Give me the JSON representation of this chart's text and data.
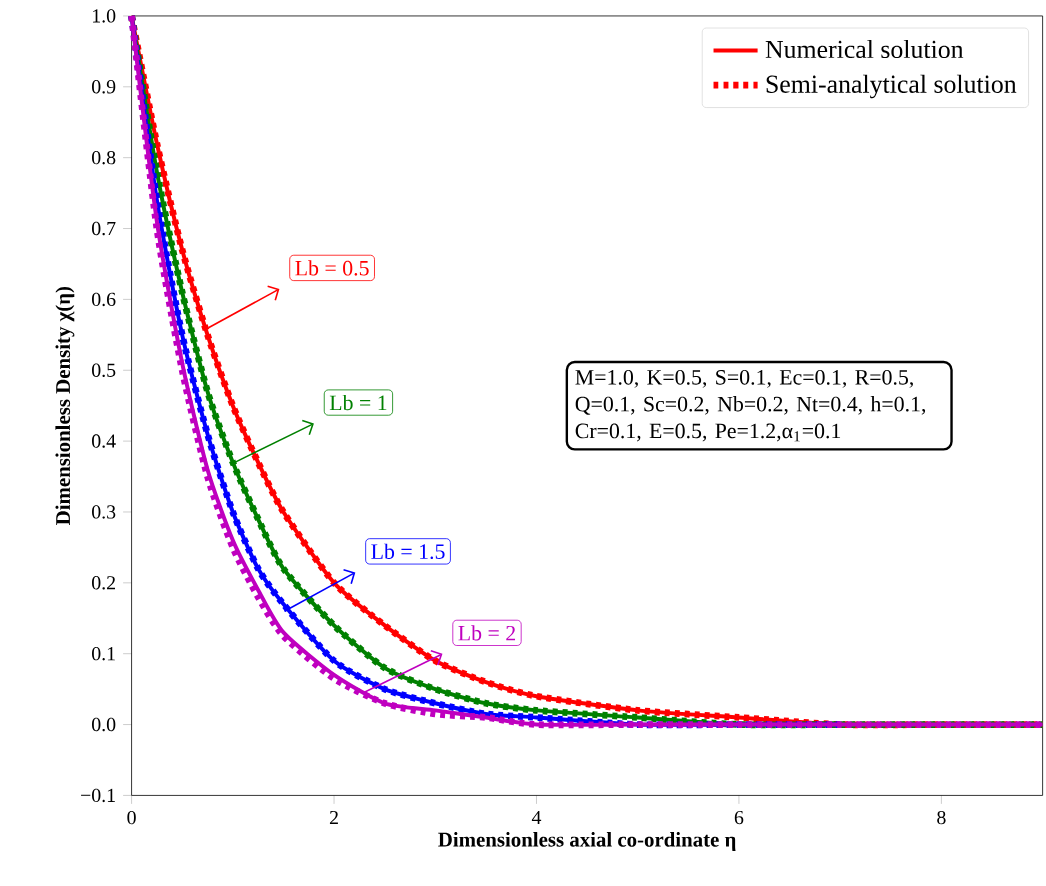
{
  "chart_data": {
    "type": "line",
    "xlabel": "Dimensionless axial co-ordinate η",
    "ylabel": "Dimensionless Density χ(η)",
    "x": [
      0,
      0.25,
      0.5,
      0.75,
      1,
      1.25,
      1.5,
      2,
      2.5,
      3,
      3.5,
      4,
      5,
      6,
      7,
      8,
      9
    ],
    "series": [
      {
        "name": "Numerical solution",
        "color": "#ff0000",
        "line_style": "solid",
        "values": [
          1.0,
          0.82,
          0.67,
          0.55,
          0.45,
          0.37,
          0.3,
          0.2,
          0.14,
          0.09,
          0.06,
          0.04,
          0.02,
          0.01,
          0.0,
          0.0,
          0.0
        ]
      },
      {
        "name": "Semi-analytical solution",
        "color": "#ff0000",
        "line_style": "dotted",
        "values": [
          1.0,
          0.82,
          0.67,
          0.55,
          0.45,
          0.37,
          0.3,
          0.2,
          0.14,
          0.09,
          0.06,
          0.04,
          0.02,
          0.01,
          0.0,
          0.0,
          0.0
        ]
      },
      {
        "color": "#008000",
        "line_style": "solid",
        "values": [
          1.0,
          0.78,
          0.61,
          0.47,
          0.37,
          0.29,
          0.22,
          0.14,
          0.08,
          0.05,
          0.03,
          0.02,
          0.01,
          0.0,
          0.0,
          0.0,
          0.0
        ]
      },
      {
        "color": "#008000",
        "line_style": "dotted",
        "values": [
          1.0,
          0.78,
          0.61,
          0.47,
          0.37,
          0.29,
          0.22,
          0.14,
          0.08,
          0.05,
          0.03,
          0.02,
          0.01,
          0.0,
          0.0,
          0.0,
          0.0
        ]
      },
      {
        "color": "#0000ff",
        "line_style": "solid",
        "values": [
          1.0,
          0.74,
          0.55,
          0.41,
          0.3,
          0.22,
          0.17,
          0.09,
          0.05,
          0.03,
          0.015,
          0.01,
          0.0,
          0.0,
          0.0,
          null,
          null
        ]
      },
      {
        "color": "#0000ff",
        "line_style": "dotted",
        "values": [
          1.0,
          0.74,
          0.55,
          0.41,
          0.3,
          0.22,
          0.17,
          0.09,
          0.05,
          0.03,
          0.015,
          0.01,
          0.0,
          0.0,
          0.0,
          null,
          null
        ]
      },
      {
        "color": "#bf00bf",
        "line_style": "solid",
        "values": [
          1.0,
          0.71,
          0.51,
          0.36,
          0.26,
          0.19,
          0.13,
          0.07,
          0.03,
          0.02,
          0.01,
          0.0,
          0.0,
          0.0,
          0.0,
          0.0,
          0.0
        ]
      },
      {
        "color": "#bf00bf",
        "line_style": "dotted",
        "values": [
          1.0,
          0.7,
          0.5,
          0.35,
          0.25,
          0.18,
          0.125,
          0.065,
          0.03,
          0.015,
          0.01,
          0.0,
          0.0,
          0.0,
          0.0,
          0.0,
          0.0
        ]
      }
    ],
    "annotations": [
      {
        "text": "Lb = 0.5",
        "x": 0.76,
        "y": 0.56
      },
      {
        "text": "Lb = 1",
        "x": 1.02,
        "y": 0.37
      },
      {
        "text": "Lb = 1.5",
        "x": 1.51,
        "y": 0.16
      },
      {
        "text": "Lb = 2",
        "x": 2.29,
        "y": 0.045
      },
      "M=1.0, K=0.5, S=0.1, Ec=0.1, R=0.5, Q=0.1, Sc=0.2, Nb=0.2, Nt=0.4, h=0.1, Cr=0.1, E=0.5, Pe=1.2,α$_{1}$=0.1"
    ],
    "xlim": [
      0,
      9
    ],
    "ylim": [
      -0.1,
      1.0
    ],
    "xticks": [
      0,
      2,
      4,
      6,
      8
    ],
    "yticks": [
      {
        "value": -0.1,
        "label": "−0.1"
      },
      {
        "value": 0.0,
        "label": "0.0"
      },
      {
        "value": 0.1,
        "label": "0.1"
      },
      {
        "value": 0.2,
        "label": "0.2"
      },
      {
        "value": 0.3,
        "label": "0.3"
      },
      {
        "value": 0.4,
        "label": "0.4"
      },
      {
        "value": 0.5,
        "label": "0.5"
      },
      {
        "value": 0.6,
        "label": "0.6"
      },
      {
        "value": 0.7,
        "label": "0.7"
      },
      {
        "value": 0.8,
        "label": "0.8"
      },
      {
        "value": 0.9,
        "label": "0.9"
      },
      {
        "value": 1.0,
        "label": "1.0"
      }
    ],
    "legend": "top right"
  }
}
